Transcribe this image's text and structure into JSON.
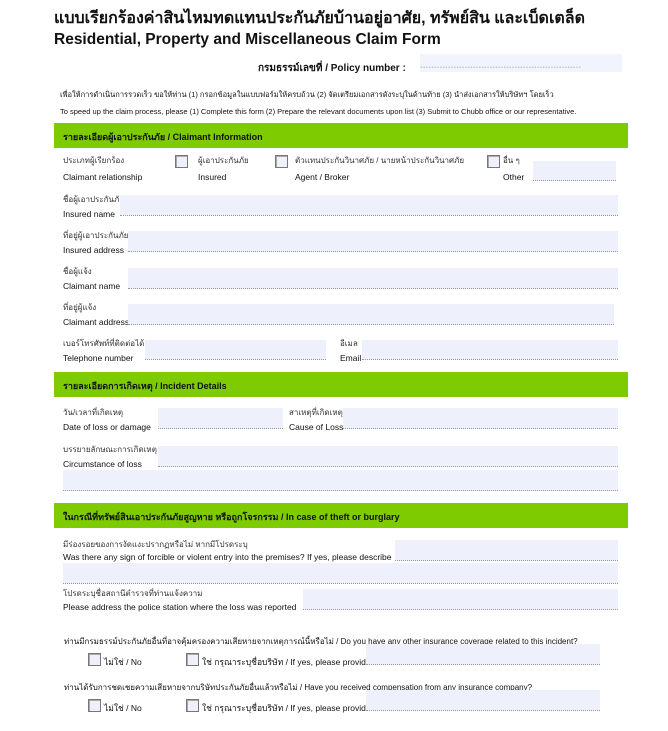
{
  "title_th": "แบบเรียกร้องค่าสินไหมทดแทนประกันภัยบ้านอยู่อาศัย, ทรัพย์สิน และเบ็ดเตล็ด",
  "title_en": "Residential, Property and Miscellaneous Claim Form",
  "policy_label": "กรมธรรม์เลขที่ / Policy number :",
  "policy_dots": "..........................................................",
  "intro_th": "เพื่อให้การดำเนินการรวดเร็ว ขอให้ท่าน (1) กรอกข้อมูลในแบบฟอร์มให้ครบถ้วน (2) จัดเตรียมเอกสารดังระบุในด้านท้าย (3) นำส่งเอกสารให้บริษัทฯ โดยเร็ว",
  "intro_en": "To speed up the claim process, please (1) Complete this form (2) Prepare the relevant documents upon list (3) Submit to Chubb office or our representative.",
  "sections": {
    "claimant": {
      "header": "รายละเอียดผู้เอาประกันภัย / Claimant Information",
      "relationship_th": "ประเภทผู้เรียกร้อง",
      "relationship_en": "Claimant relationship",
      "options": [
        {
          "th": "ผู้เอาประกันภัย",
          "en": "Insured"
        },
        {
          "th": "ตัวแทนประกันวินาศภัย / นายหน้าประกันวินาศภัย",
          "en": "Agent / Broker"
        },
        {
          "th": "อื่น ๆ",
          "en": "Other"
        }
      ],
      "insured_name_th": "ชื่อผู้เอาประกันภัย",
      "insured_name_en": "Insured name",
      "insured_address_th": "ที่อยู่ผู้เอาประกันภัย",
      "insured_address_en": "Insured address",
      "claimant_name_th": "ชื่อผู้แจ้ง",
      "claimant_name_en": "Claimant name",
      "claimant_address_th": "ที่อยู่ผู้แจ้ง",
      "claimant_address_en": "Claimant address",
      "telephone_th": "เบอร์โทรศัพท์ที่ติดต่อได้",
      "telephone_en": "Telephone number",
      "email_th": "อีเมล",
      "email_en": "Email"
    },
    "incident": {
      "header": "รายละเอียดการเกิดเหตุ / Incident Details",
      "date_th": "วัน/เวลาที่เกิดเหตุ",
      "date_en": "Date of loss or damage",
      "cause_th": "สาเหตุที่เกิดเหตุ",
      "cause_en": "Cause of Loss",
      "circ_th": "บรรยายลักษณะการเกิดเหตุ",
      "circ_en": "Circumstance of loss"
    },
    "theft": {
      "header": "ในกรณีที่ทรัพย์สินเอาประกันภัยสูญหาย หรือถูกโจรกรรม / In case of theft or burglary",
      "entry_th": "มีร่องรอยของการงัดแงะปรากฏหรือไม่ หากมีโปรดระบุ",
      "entry_en": "Was there any sign of forcible or violent entry into the premises? If yes, please describe",
      "police_th": "โปรดระบุชื่อสถานีตำรวจที่ท่านแจ้งความ",
      "police_en": "Please address the police station where the loss was reported",
      "q1": "ท่านมีกรมธรรม์ประกันภัยอื่นที่อาจคุ้มครองความเสียหายจากเหตุการณ์นี้หรือไม่ / Do you have any other insurance coverage related to this incident?",
      "q2": "ท่านได้รับการชดเชยความเสียหายจากบริษัทประกันภัยอื่นแล้วหรือไม่ / Have you received compensation from any insurance company?",
      "no": "ไม่ใช่ / No",
      "yes": "ใช่ กรุณาระบุชื่อบริษัท / If yes, please provide"
    }
  }
}
